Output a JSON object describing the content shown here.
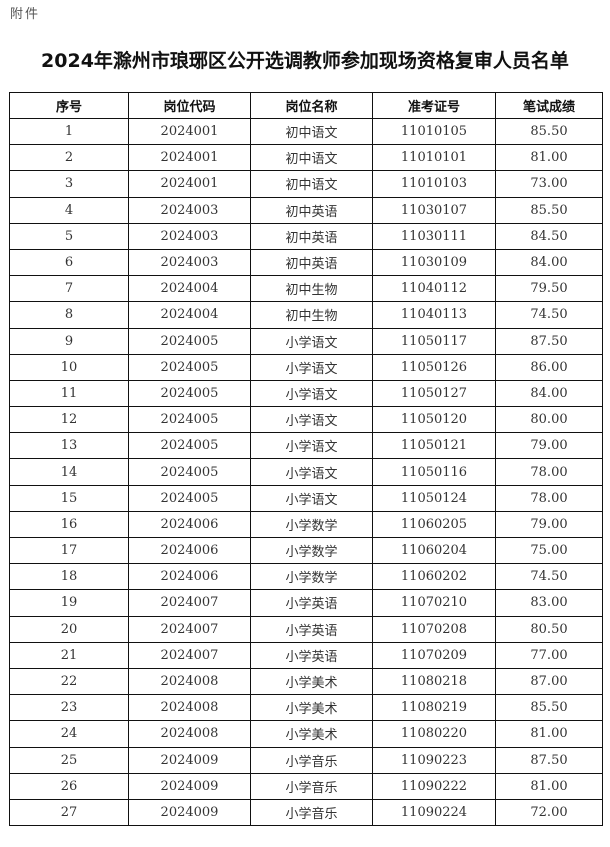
{
  "attachment_label": "附件",
  "title": "2024年滁州市琅琊区公开选调教师参加现场资格复审人员名单",
  "table": {
    "headers": [
      "序号",
      "岗位代码",
      "岗位名称",
      "准考证号",
      "笔试成绩"
    ],
    "rows": [
      [
        "1",
        "2024001",
        "初中语文",
        "11010105",
        "85.50"
      ],
      [
        "2",
        "2024001",
        "初中语文",
        "11010101",
        "81.00"
      ],
      [
        "3",
        "2024001",
        "初中语文",
        "11010103",
        "73.00"
      ],
      [
        "4",
        "2024003",
        "初中英语",
        "11030107",
        "85.50"
      ],
      [
        "5",
        "2024003",
        "初中英语",
        "11030111",
        "84.50"
      ],
      [
        "6",
        "2024003",
        "初中英语",
        "11030109",
        "84.00"
      ],
      [
        "7",
        "2024004",
        "初中生物",
        "11040112",
        "79.50"
      ],
      [
        "8",
        "2024004",
        "初中生物",
        "11040113",
        "74.50"
      ],
      [
        "9",
        "2024005",
        "小学语文",
        "11050117",
        "87.50"
      ],
      [
        "10",
        "2024005",
        "小学语文",
        "11050126",
        "86.00"
      ],
      [
        "11",
        "2024005",
        "小学语文",
        "11050127",
        "84.00"
      ],
      [
        "12",
        "2024005",
        "小学语文",
        "11050120",
        "80.00"
      ],
      [
        "13",
        "2024005",
        "小学语文",
        "11050121",
        "79.00"
      ],
      [
        "14",
        "2024005",
        "小学语文",
        "11050116",
        "78.00"
      ],
      [
        "15",
        "2024005",
        "小学语文",
        "11050124",
        "78.00"
      ],
      [
        "16",
        "2024006",
        "小学数学",
        "11060205",
        "79.00"
      ],
      [
        "17",
        "2024006",
        "小学数学",
        "11060204",
        "75.00"
      ],
      [
        "18",
        "2024006",
        "小学数学",
        "11060202",
        "74.50"
      ],
      [
        "19",
        "2024007",
        "小学英语",
        "11070210",
        "83.00"
      ],
      [
        "20",
        "2024007",
        "小学英语",
        "11070208",
        "80.50"
      ],
      [
        "21",
        "2024007",
        "小学英语",
        "11070209",
        "77.00"
      ],
      [
        "22",
        "2024008",
        "小学美术",
        "11080218",
        "87.00"
      ],
      [
        "23",
        "2024008",
        "小学美术",
        "11080219",
        "85.50"
      ],
      [
        "24",
        "2024008",
        "小学美术",
        "11080220",
        "81.00"
      ],
      [
        "25",
        "2024009",
        "小学音乐",
        "11090223",
        "87.50"
      ],
      [
        "26",
        "2024009",
        "小学音乐",
        "11090222",
        "81.00"
      ],
      [
        "27",
        "2024009",
        "小学音乐",
        "11090224",
        "72.00"
      ]
    ]
  }
}
